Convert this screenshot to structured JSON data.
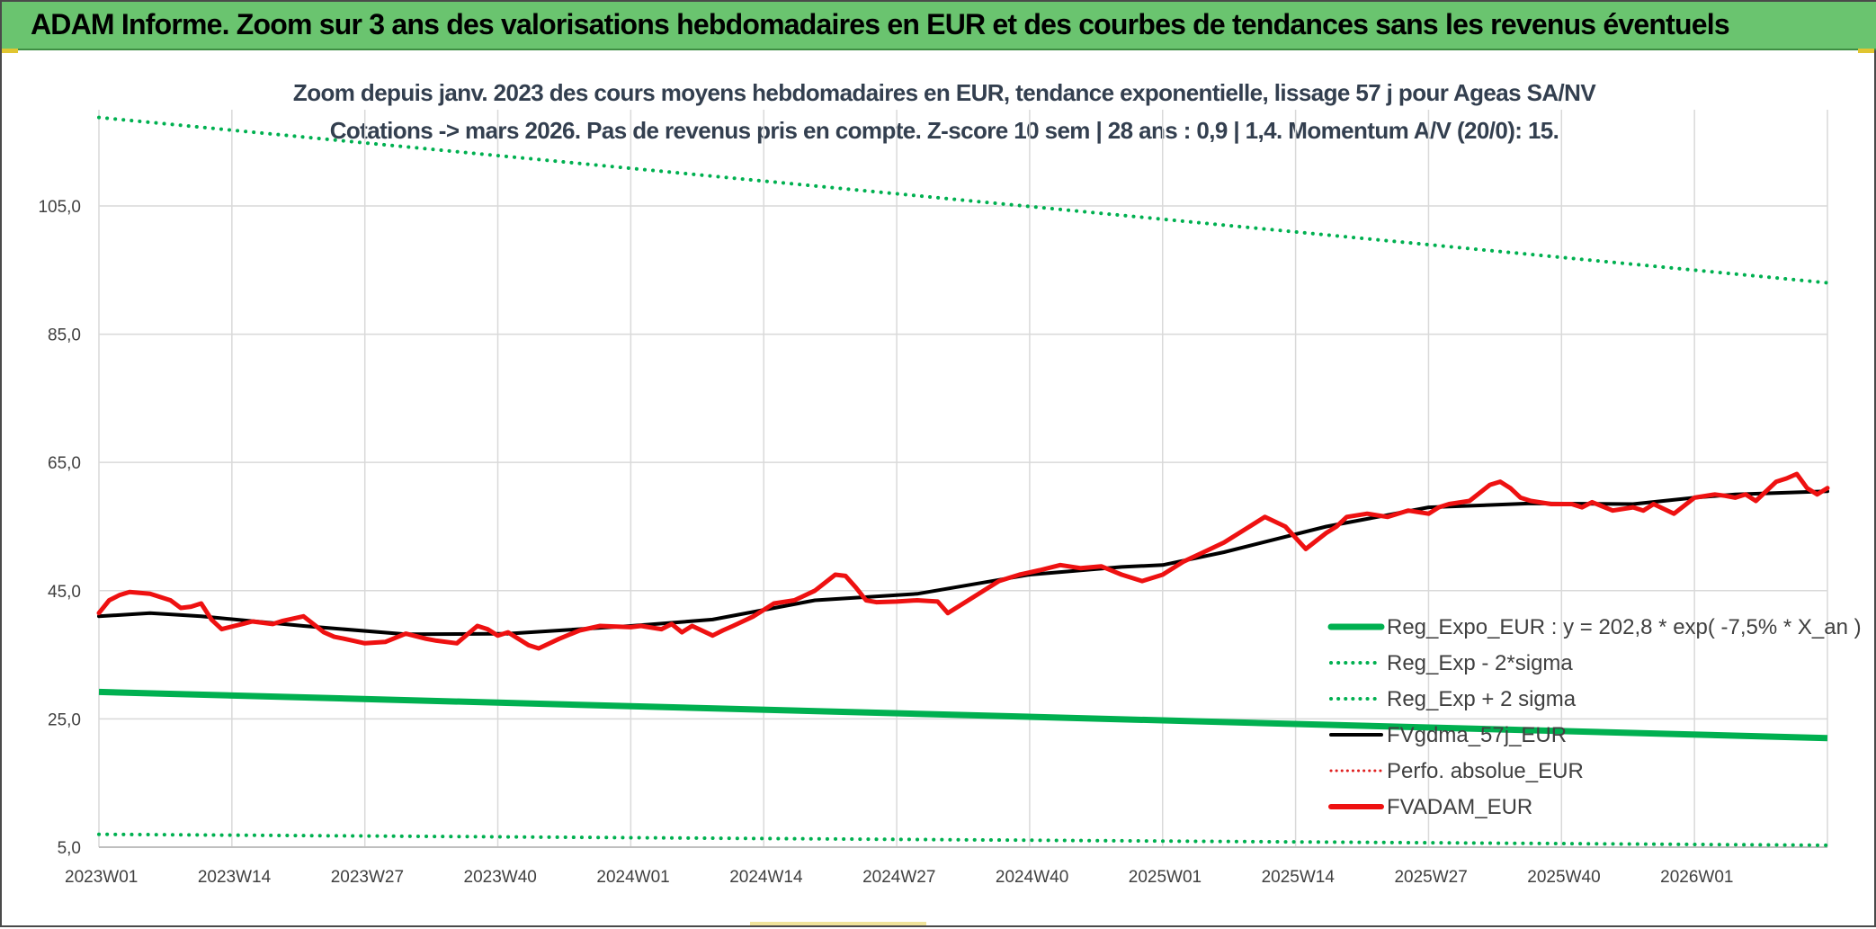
{
  "header": {
    "title": "ADAM Informe. Zoom sur 3 ans des valorisations hebdomadaires en EUR et des courbes de tendances sans les revenus éventuels"
  },
  "colors": {
    "header_bg": "#6ac46f",
    "regression": "#00b050",
    "fvgdma": "#000000",
    "fvadam": "#ee1111",
    "perfo": "#e02020",
    "grid": "#d9d9d9"
  },
  "chart_data": {
    "type": "line",
    "subtitle_lines": [
      "Zoom depuis janv. 2023 des cours moyens hebdomadaires en EUR, tendance exponentielle, lissage 57 j pour Ageas SA/NV",
      "Cotations -> mars 2026. Pas de revenus pris en compte. Z-score 10 sem | 28 ans : 0,9 | 1,4. Momentum A/V (20/0): 15."
    ],
    "ylim": [
      5,
      120
    ],
    "y_ticks": [
      5,
      25,
      45,
      65,
      85,
      105
    ],
    "y_tick_labels": [
      "5,0",
      "25,0",
      "45,0",
      "65,0",
      "85,0",
      "105,0"
    ],
    "x_tick_labels": [
      "2023W01",
      "2023W14",
      "2023W27",
      "2023W40",
      "2024W01",
      "2024W14",
      "2024W27",
      "2024W40",
      "2025W01",
      "2025W14",
      "2025W27",
      "2025W40",
      "2026W01"
    ],
    "x_tick_index": [
      0,
      13,
      26,
      39,
      52,
      65,
      78,
      91,
      104,
      117,
      130,
      143,
      156
    ],
    "n_points": 170,
    "grid": true,
    "legend_position": "bottom-right",
    "legend": [
      "Reg_Expo_EUR : y = 202,8 * exp( -7,5% *  X_an )",
      "Reg_Exp - 2*sigma",
      "Reg_Exp + 2 sigma",
      "FVgdma_57j_EUR",
      "Perfo. absolue_EUR",
      "FVADAM_EUR"
    ],
    "series": [
      {
        "name": "Reg_Expo_EUR : y = 202,8 * exp( -7,5% *  X_an )",
        "style": "solid-thick",
        "x": [
          0,
          169
        ],
        "values": [
          29.2,
          22.0
        ]
      },
      {
        "name": "Reg_Exp - 2*sigma",
        "style": "dotted",
        "x": [
          0,
          169
        ],
        "values": [
          7.0,
          5.3
        ]
      },
      {
        "name": "Reg_Exp + 2 sigma",
        "style": "dotted",
        "x": [
          0,
          169
        ],
        "values": [
          118.8,
          93.0
        ]
      },
      {
        "name": "FVgdma_57j_EUR",
        "style": "solid",
        "x": [
          0,
          5,
          10,
          20,
          30,
          40,
          52,
          60,
          70,
          80,
          91,
          100,
          104,
          110,
          120,
          130,
          140,
          150,
          156,
          160,
          169
        ],
        "values": [
          41.0,
          41.5,
          41.0,
          39.5,
          38.2,
          38.3,
          39.5,
          40.5,
          43.5,
          44.5,
          47.5,
          48.7,
          49.0,
          51.0,
          55.0,
          58.0,
          58.6,
          58.5,
          59.5,
          60.0,
          60.5
        ]
      },
      {
        "name": "FVADAM_EUR",
        "style": "solid-thick",
        "x": [
          0,
          1,
          2,
          3,
          5,
          7,
          8,
          9,
          10,
          11,
          12,
          14,
          15,
          17,
          18,
          20,
          22,
          23,
          24,
          26,
          28,
          30,
          32,
          33,
          35,
          37,
          38,
          39,
          40,
          42,
          43,
          45,
          47,
          49,
          52,
          53,
          55,
          56,
          57,
          58,
          60,
          61,
          62,
          64,
          66,
          68,
          70,
          72,
          73,
          74,
          75,
          76,
          78,
          80,
          82,
          83,
          85,
          87,
          88,
          89,
          90,
          92,
          94,
          96,
          98,
          100,
          102,
          104,
          106,
          108,
          110,
          112,
          114,
          116,
          118,
          120,
          121,
          122,
          124,
          126,
          128,
          130,
          131,
          132,
          134,
          136,
          137,
          138,
          139,
          140,
          142,
          144,
          145,
          146,
          148,
          150,
          151,
          152,
          154,
          156,
          158,
          159,
          160,
          161,
          162,
          164,
          165,
          166,
          167,
          168,
          169
        ],
        "values": [
          41.5,
          43.5,
          44.3,
          44.8,
          44.5,
          43.5,
          42.3,
          42.5,
          43.0,
          40.5,
          39.0,
          39.8,
          40.2,
          39.8,
          40.3,
          41.0,
          38.5,
          37.8,
          37.5,
          36.8,
          37.0,
          38.3,
          37.5,
          37.2,
          36.8,
          39.5,
          39.0,
          38.0,
          38.5,
          36.5,
          36.0,
          37.5,
          38.8,
          39.5,
          39.3,
          39.5,
          39.0,
          39.8,
          38.5,
          39.5,
          38.0,
          38.8,
          39.5,
          41.0,
          43.0,
          43.5,
          45.0,
          47.5,
          47.3,
          45.5,
          43.5,
          43.2,
          43.3,
          43.5,
          43.3,
          41.5,
          43.5,
          45.5,
          46.5,
          47.0,
          47.5,
          48.2,
          49.0,
          48.5,
          48.8,
          47.5,
          46.5,
          47.5,
          49.5,
          51.0,
          52.5,
          54.5,
          56.5,
          55.0,
          51.5,
          54.0,
          55.0,
          56.5,
          57.0,
          56.5,
          57.5,
          57.0,
          58.0,
          58.5,
          59.0,
          61.5,
          62.0,
          61.0,
          59.5,
          59.0,
          58.5,
          58.5,
          58.0,
          58.8,
          57.5,
          58.0,
          57.5,
          58.5,
          57.0,
          59.5,
          60.0,
          59.8,
          59.5,
          60.0,
          59.0,
          62.0,
          62.5,
          63.2,
          61.0,
          60.0,
          61.0
        ]
      }
    ]
  }
}
